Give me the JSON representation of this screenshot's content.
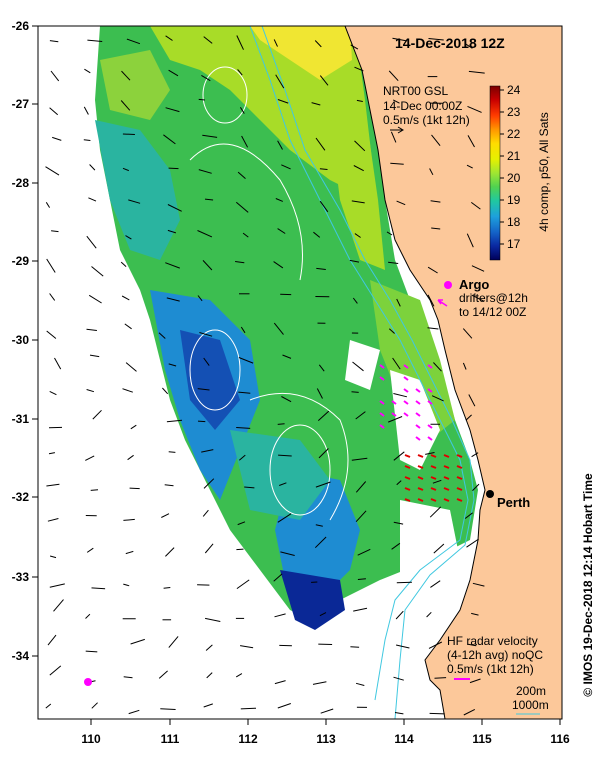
{
  "title": "14-Dec-2018 12Z",
  "credit": "© IMOS 19-Dec-2018 12:14 Hobart Time",
  "axes": {
    "lon_ticks": [
      "110",
      "111",
      "112",
      "113",
      "114",
      "115",
      "116"
    ],
    "lat_ticks": [
      "-26",
      "-27",
      "-28",
      "-29",
      "-30",
      "-31",
      "-32",
      "-33",
      "-34"
    ]
  },
  "colorbar": {
    "ticks": [
      "24",
      "23",
      "22",
      "21",
      "20",
      "19",
      "18",
      "17"
    ],
    "label": "4h comp, p50, All Sats",
    "colors": [
      "#7a0000",
      "#c80000",
      "#ff3c00",
      "#ff9600",
      "#ffdc00",
      "#e6f000",
      "#a0e632",
      "#50d250",
      "#20c8a0",
      "#1ea0dc",
      "#1464c8",
      "#0a28a0",
      "#00005a"
    ]
  },
  "gsl": {
    "line1": "NRT00 GSL",
    "line2": "14-Dec 00:00Z",
    "line3": "0.5m/s (1kt 12h)"
  },
  "argo": {
    "label": "Argo",
    "line2": "drifters@12h",
    "line3": "to 14/12 00Z",
    "color": "#ff00ff"
  },
  "city": {
    "name": "Perth"
  },
  "hf_radar": {
    "line1": "HF radar velocity",
    "line2": "(4-12h avg) noQC",
    "line3": "0.5m/s (1kt 12h)",
    "color": "#ff00ff"
  },
  "isobaths": {
    "line1": "200m",
    "line2": "1000m",
    "color": "#40c8e0"
  },
  "land_color": "#fcc89a"
}
